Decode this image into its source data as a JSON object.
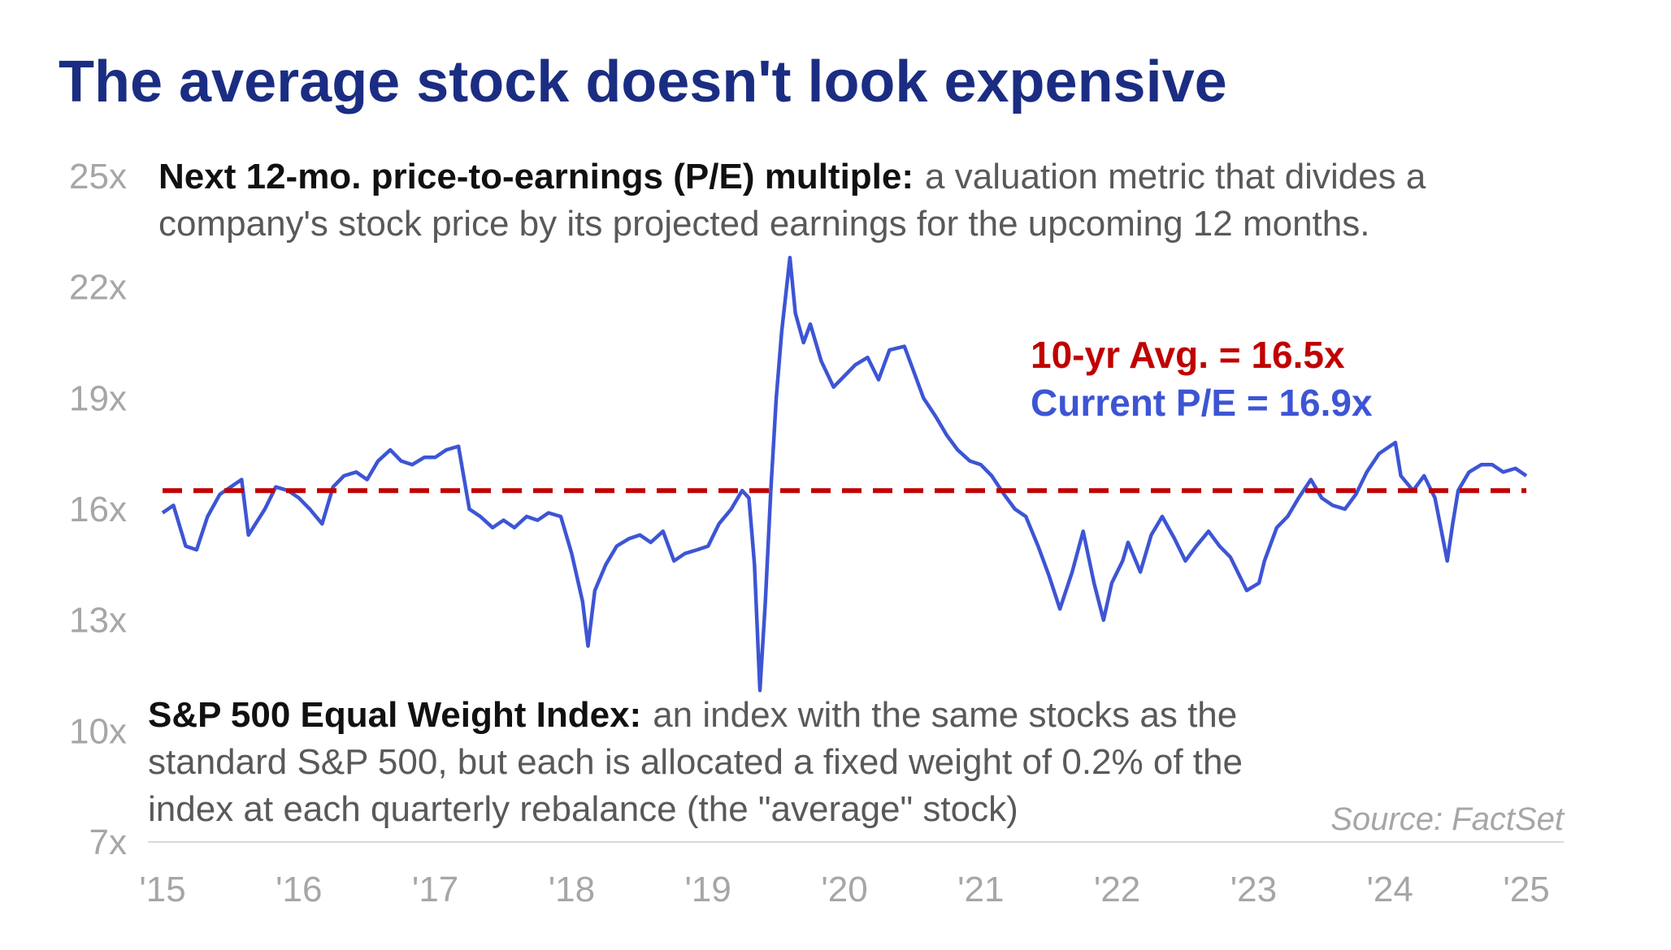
{
  "chart_data": {
    "type": "line",
    "title": "The average stock doesn't look expensive",
    "notes": [
      {
        "term": "Next 12-mo. price-to-earnings (P/E) multiple:",
        "lines": [
          "a valuation metric that divides a",
          "company's stock price by its projected earnings for the upcoming 12 months."
        ]
      },
      {
        "term": "S&P 500 Equal Weight Index:",
        "lines": [
          "an index with the same stocks as the",
          "standard S&P 500, but each is allocated a fixed weight of 0.2% of the",
          "index at each quarterly rebalance (the \"average\" stock)"
        ]
      }
    ],
    "annotations": [
      {
        "text": "10-yr Avg. = 16.5x",
        "color": "#c00000"
      },
      {
        "text": "Current P/E = 16.9x",
        "color": "#3d55d4"
      }
    ],
    "source": "Source: FactSet",
    "average": {
      "value": 16.5,
      "color": "#c00000",
      "x": [
        2015,
        2025
      ]
    },
    "series": [
      {
        "color": "#3d55d4",
        "x": [
          2015,
          2015.08,
          2015.17,
          2015.25,
          2015.33,
          2015.42,
          2015.5,
          2015.58,
          2015.63,
          2015.75,
          2015.83,
          2015.92,
          2016,
          2016.08,
          2016.17,
          2016.25,
          2016.33,
          2016.42,
          2016.5,
          2016.58,
          2016.67,
          2016.75,
          2016.83,
          2016.92,
          2017,
          2017.08,
          2017.17,
          2017.25,
          2017.33,
          2017.42,
          2017.5,
          2017.58,
          2017.67,
          2017.75,
          2017.83,
          2017.92,
          2018,
          2018.08,
          2018.12,
          2018.17,
          2018.25,
          2018.33,
          2018.42,
          2018.5,
          2018.58,
          2018.67,
          2018.75,
          2018.83,
          2018.92,
          2019,
          2019.08,
          2019.17,
          2019.25,
          2019.3,
          2019.34,
          2019.38,
          2019.42,
          2019.46,
          2019.5,
          2019.54,
          2019.6,
          2019.64,
          2019.7,
          2019.75,
          2019.83,
          2019.92,
          2020,
          2020.08,
          2020.17,
          2020.25,
          2020.33,
          2020.44,
          2020.5,
          2020.58,
          2020.67,
          2020.75,
          2020.83,
          2020.92,
          2021,
          2021.08,
          2021.17,
          2021.25,
          2021.33,
          2021.42,
          2021.5,
          2021.58,
          2021.67,
          2021.75,
          2021.83,
          2021.9,
          2021.96,
          2022.04,
          2022.08,
          2022.17,
          2022.25,
          2022.33,
          2022.42,
          2022.5,
          2022.58,
          2022.67,
          2022.75,
          2022.83,
          2022.95,
          2023.04,
          2023.08,
          2023.17,
          2023.25,
          2023.33,
          2023.42,
          2023.5,
          2023.58,
          2023.67,
          2023.75,
          2023.83,
          2023.92,
          2024.04,
          2024.08,
          2024.17,
          2024.25,
          2024.33,
          2024.42,
          2024.46,
          2024.5,
          2024.58,
          2024.67,
          2024.75,
          2024.83,
          2024.92,
          2025
        ],
        "values": [
          15.9,
          16.1,
          15,
          14.9,
          15.8,
          16.4,
          16.6,
          16.8,
          15.3,
          16,
          16.6,
          16.5,
          16.3,
          16,
          15.6,
          16.6,
          16.9,
          17,
          16.8,
          17.3,
          17.6,
          17.3,
          17.2,
          17.4,
          17.4,
          17.6,
          17.7,
          16,
          15.8,
          15.5,
          15.7,
          15.5,
          15.8,
          15.7,
          15.9,
          15.8,
          14.8,
          13.5,
          12.3,
          13.8,
          14.5,
          15,
          15.2,
          15.3,
          15.1,
          15.4,
          14.6,
          14.8,
          14.9,
          15,
          15.6,
          16,
          16.5,
          16.3,
          14.5,
          11.1,
          13.5,
          16.5,
          19,
          20.8,
          22.8,
          21.3,
          20.5,
          21,
          20,
          19.3,
          19.6,
          19.9,
          20.1,
          19.5,
          20.3,
          20.4,
          19.8,
          19,
          18.5,
          18,
          17.6,
          17.3,
          17.2,
          16.9,
          16.4,
          16,
          15.8,
          15,
          14.2,
          13.3,
          14.3,
          15.4,
          14,
          13,
          14,
          14.6,
          15.1,
          14.3,
          15.3,
          15.8,
          15.2,
          14.6,
          15,
          15.4,
          15,
          14.7,
          13.8,
          14,
          14.6,
          15.5,
          15.8,
          16.3,
          16.8,
          16.3,
          16.1,
          16,
          16.4,
          17,
          17.5,
          17.8,
          16.9,
          16.5,
          16.9,
          16.3,
          14.6,
          15.6,
          16.5,
          17,
          17.2,
          17.2,
          17,
          17.1,
          16.9
        ]
      }
    ],
    "xlim": [
      2015,
      2025
    ],
    "xticks": [
      {
        "value": 2015,
        "label": "'15"
      },
      {
        "value": 2016,
        "label": "'16"
      },
      {
        "value": 2017,
        "label": "'17"
      },
      {
        "value": 2018,
        "label": "'18"
      },
      {
        "value": 2019,
        "label": "'19"
      },
      {
        "value": 2020,
        "label": "'20"
      },
      {
        "value": 2021,
        "label": "'21"
      },
      {
        "value": 2022,
        "label": "'22"
      },
      {
        "value": 2023,
        "label": "'23"
      },
      {
        "value": 2024,
        "label": "'24"
      },
      {
        "value": 2025,
        "label": "'25"
      }
    ],
    "ylim": [
      7,
      25
    ],
    "yticks": [
      {
        "value": 7,
        "label": "7x"
      },
      {
        "value": 10,
        "label": "10x"
      },
      {
        "value": 13,
        "label": "13x"
      },
      {
        "value": 16,
        "label": "16x"
      },
      {
        "value": 19,
        "label": "19x"
      },
      {
        "value": 22,
        "label": "22x"
      },
      {
        "value": 25,
        "label": "25x"
      }
    ]
  }
}
